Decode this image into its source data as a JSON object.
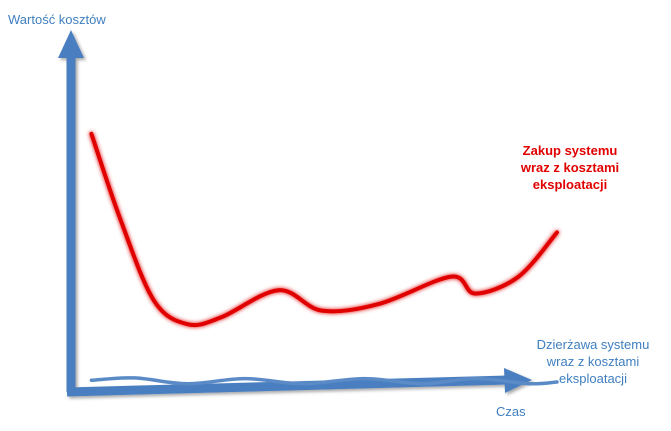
{
  "chart_data": {
    "type": "line",
    "ylabel": "Wartość kosztów",
    "xlabel": "Czas",
    "xlim": [
      0,
      10
    ],
    "ylim": [
      0,
      10
    ],
    "ticks": "none",
    "grid": false,
    "legend": "none",
    "series": [
      {
        "name": "Zakup systemu\nwraz z kosztami\neksploatacji",
        "color": "#e00000",
        "points": [
          [
            0.3,
            7.8
          ],
          [
            0.9,
            5.3
          ],
          [
            1.6,
            2.9
          ],
          [
            2.3,
            2.2
          ],
          [
            3.0,
            2.4
          ],
          [
            4.2,
            3.2
          ],
          [
            5.1,
            2.6
          ],
          [
            6.3,
            2.8
          ],
          [
            7.8,
            3.6
          ],
          [
            8.3,
            3.1
          ],
          [
            9.2,
            3.6
          ],
          [
            10.0,
            4.9
          ]
        ]
      },
      {
        "name": "Dzierżawa systemu\nwraz z kosztami\neksploatacji",
        "color": "#5b8bc7",
        "points": [
          [
            0.3,
            0.55
          ],
          [
            1.2,
            0.62
          ],
          [
            2.3,
            0.45
          ],
          [
            3.5,
            0.6
          ],
          [
            4.7,
            0.45
          ],
          [
            6.0,
            0.6
          ],
          [
            7.2,
            0.45
          ],
          [
            8.3,
            0.6
          ],
          [
            9.4,
            0.45
          ],
          [
            10.0,
            0.5
          ]
        ]
      }
    ]
  }
}
